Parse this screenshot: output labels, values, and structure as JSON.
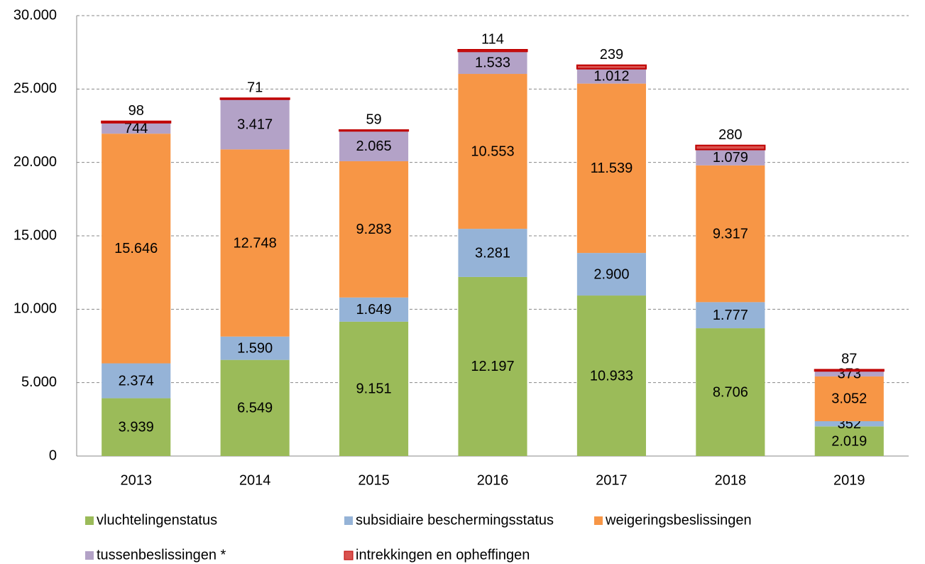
{
  "chart_data": {
    "type": "stacked-bar",
    "categories": [
      "2013",
      "2014",
      "2015",
      "2016",
      "2017",
      "2018",
      "2019"
    ],
    "series": [
      {
        "name": "vluchtelingenstatus",
        "color": "#9bbb59",
        "values": [
          3939,
          6549,
          9151,
          12197,
          10933,
          8706,
          2019
        ],
        "value_labels": [
          "3.939",
          "6.549",
          "9.151",
          "12.197",
          "10.933",
          "8.706",
          "2.019"
        ]
      },
      {
        "name": "subsidiaire beschermingsstatus",
        "color": "#95b3d7",
        "values": [
          2374,
          1590,
          1649,
          3281,
          2900,
          1777,
          352
        ],
        "value_labels": [
          "2.374",
          "1.590",
          "1.649",
          "3.281",
          "2.900",
          "1.777",
          "352"
        ]
      },
      {
        "name": "weigeringsbeslissingen",
        "color": "#f79646",
        "values": [
          15646,
          12748,
          9283,
          10553,
          11539,
          9317,
          3052
        ],
        "value_labels": [
          "15.646",
          "12.748",
          "9.283",
          "10.553",
          "11.539",
          "9.317",
          "3.052"
        ]
      },
      {
        "name": "tussenbeslissingen *",
        "color": "#b3a2c7",
        "values": [
          744,
          3417,
          2065,
          1533,
          1012,
          1079,
          373
        ],
        "value_labels": [
          "744",
          "3.417",
          "2.065",
          "1.533",
          "1.012",
          "1.079",
          "373"
        ]
      },
      {
        "name": "intrekkingen en opheffingen",
        "color": "#d9534f",
        "values": [
          98,
          71,
          59,
          114,
          239,
          280,
          87
        ],
        "value_labels": [
          "98",
          "71",
          "59",
          "114",
          "239",
          "280",
          "87"
        ]
      }
    ],
    "ylim": [
      0,
      30000
    ],
    "yticks": [
      0,
      {
        "value": 5000,
        "label": "5.000"
      },
      {
        "value": 10000,
        "label": "10.000"
      },
      {
        "value": 15000,
        "label": "15.000"
      },
      {
        "value": 20000,
        "label": "20.000"
      },
      {
        "value": 25000,
        "label": "25.000"
      },
      {
        "value": 30000,
        "label": "30.000"
      }
    ],
    "grid": true
  }
}
